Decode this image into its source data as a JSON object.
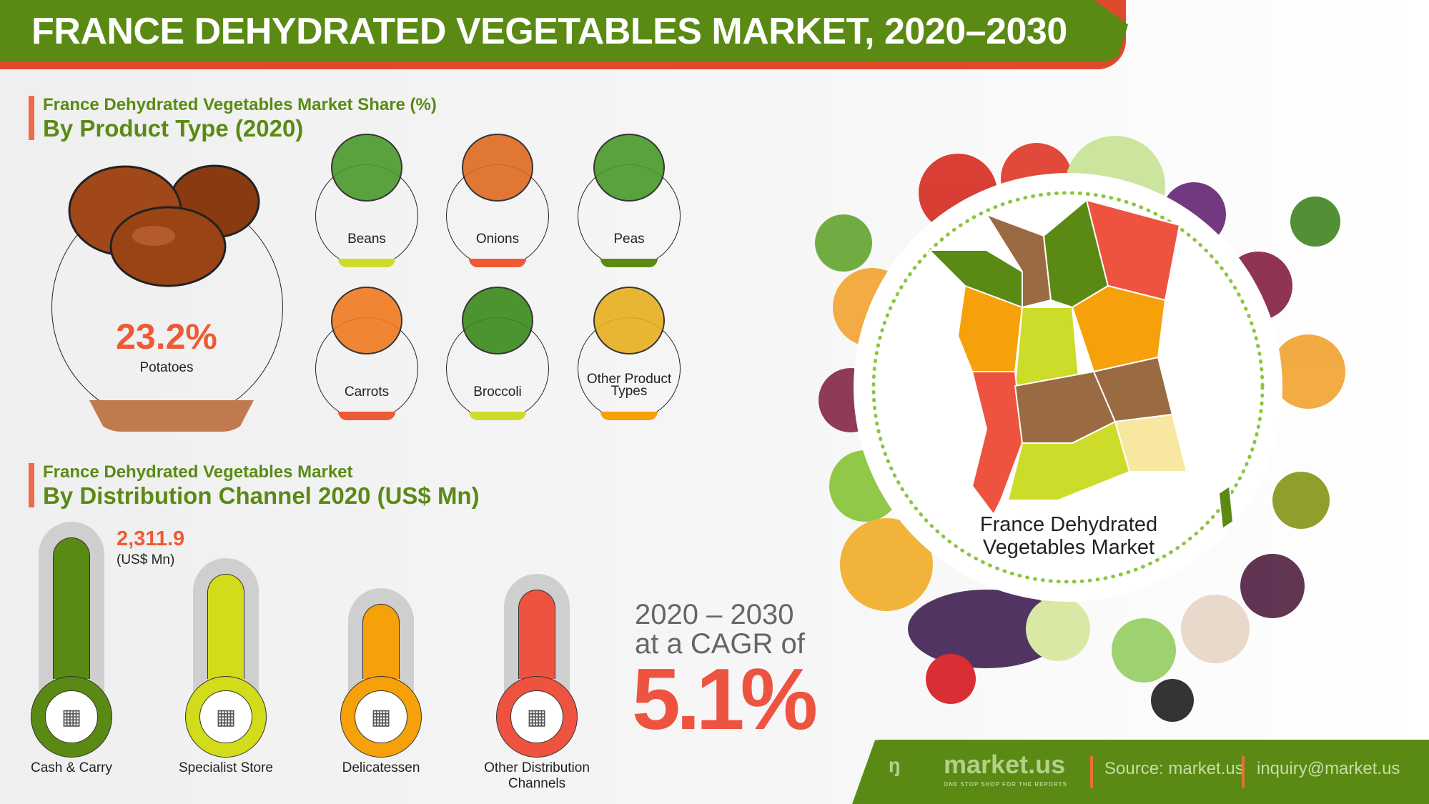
{
  "header": {
    "title": "FRANCE DEHYDRATED VEGETABLES MARKET, 2020–2030"
  },
  "product_section": {
    "subtitle": "France Dehydrated Vegetables Market Share (%)",
    "title": "By Product Type (2020)",
    "highlight": {
      "value": "23.2%",
      "label": "Potatoes"
    },
    "items": [
      {
        "label": "Beans",
        "color": "#cddc2a"
      },
      {
        "label": "Onions",
        "color": "#ee5a35"
      },
      {
        "label": "Peas",
        "color": "#5a8a14"
      },
      {
        "label": "Carrots",
        "color": "#ee5a35"
      },
      {
        "label": "Broccoli",
        "color": "#cddc2a"
      },
      {
        "label": "Other Product Types",
        "color": "#f7a10a"
      }
    ]
  },
  "distribution_section": {
    "subtitle": "France Dehydrated Vegetables Market",
    "title": "By Distribution Channel 2020 (US$ Mn)",
    "top_value": "2,311.9",
    "top_unit": "(US$ Mn)",
    "channels": [
      {
        "label": "Cash & Carry",
        "color": "#5a8a14",
        "icon": "wallet-icon",
        "level": 1.0
      },
      {
        "label": "Specialist Store",
        "color": "#d2dc1a",
        "icon": "store-icon",
        "level": 0.74
      },
      {
        "label": "Delicatessen",
        "color": "#f7a10a",
        "icon": "shop-icon",
        "level": 0.53
      },
      {
        "label": "Other Distribution Channels",
        "color": "#ee5340",
        "icon": "grocery-icon",
        "level": 0.63
      }
    ]
  },
  "cagr": {
    "period": "2020 – 2030",
    "line2": "at a CAGR of",
    "value": "5.1%"
  },
  "map": {
    "label_line1": "France Dehydrated",
    "label_line2": "Vegetables Market"
  },
  "footer": {
    "brand": "market.us",
    "tagline": "ONE STOP SHOP FOR THE REPORTS",
    "source": "Source: market.us",
    "email": "inquiry@market.us"
  }
}
